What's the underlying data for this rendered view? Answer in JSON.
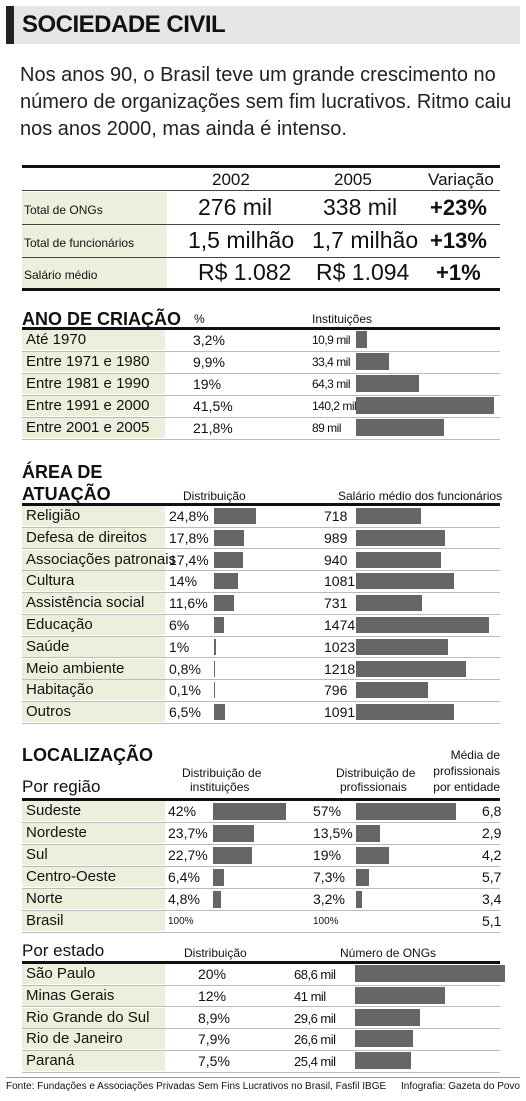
{
  "header": {
    "title": "SOCIEDADE CIVIL",
    "intro": "Nos anos 90, o Brasil teve um grande crescimento no número de organizações sem fim lucrativos. Ritmo caiu nos anos 2000, mas ainda é intenso."
  },
  "summary": {
    "years": [
      "2002",
      "2005"
    ],
    "variation_label": "Variação",
    "rows": [
      {
        "label": "Total de ONGs",
        "v2002": "276 mil",
        "v2005": "338 mil",
        "variation": "+23%"
      },
      {
        "label": "Total de funcionários",
        "v2002": "1,5 milhão",
        "v2005": "1,7 milhão",
        "variation": "+13%"
      },
      {
        "label": "Salário médio",
        "v2002": "R$ 1.082",
        "v2005": "R$ 1.094",
        "variation": "+1%"
      }
    ]
  },
  "creation": {
    "title": "ANO DE CRIAÇÃO",
    "col_pct": "%",
    "col_inst": "Instituições",
    "rows": [
      {
        "label": "Até 1970",
        "pct": "3,2%",
        "value_label": "10,9 mil"
      },
      {
        "label": "Entre 1971 e 1980",
        "pct": "9,9%",
        "value_label": "33,4 mil"
      },
      {
        "label": "Entre 1981 e 1990",
        "pct": "19%",
        "value_label": "64,3 mil"
      },
      {
        "label": "Entre 1991 e 2000",
        "pct": "41,5%",
        "value_label": "140,2 mil"
      },
      {
        "label": "Entre 2001 e 2005",
        "pct": "21,8%",
        "value_label": "89 mil"
      }
    ]
  },
  "area": {
    "title_line1": "ÁREA DE",
    "title_line2": "ATUAÇÃO",
    "col_dist": "Distribuição",
    "col_salary": "Salário médio dos funcionários",
    "rows": [
      {
        "label": "Religião",
        "dist": "24,8%",
        "salary": "718"
      },
      {
        "label": "Defesa de direitos",
        "dist": "17,8%",
        "salary": "989"
      },
      {
        "label": "Associações patronais",
        "dist": "17,4%",
        "salary": "940"
      },
      {
        "label": "Cultura",
        "dist": "14%",
        "salary": "1081"
      },
      {
        "label": "Assistência social",
        "dist": "11,6%",
        "salary": "731"
      },
      {
        "label": "Educação",
        "dist": "6%",
        "salary": "1474"
      },
      {
        "label": "Saúde",
        "dist": "1%",
        "salary": "1023"
      },
      {
        "label": "Meio ambiente",
        "dist": "0,8%",
        "salary": "1218"
      },
      {
        "label": "Habitação",
        "dist": "0,1%",
        "salary": "796"
      },
      {
        "label": "Outros",
        "dist": "6,5%",
        "salary": "1091"
      }
    ]
  },
  "location": {
    "title": "LOCALIZAÇÃO",
    "region_title": "Por região",
    "col_inst_line1": "Distribuição de",
    "col_inst_line2": "instituições",
    "col_prof_line1": "Distribuição de",
    "col_prof_line2": "profissionais",
    "col_avg_line1": "Média de",
    "col_avg_line2": "profissionais",
    "col_avg_line3": "por entidade",
    "rows": [
      {
        "label": "Sudeste",
        "inst": "42%",
        "prof": "57%",
        "avg": "6,8"
      },
      {
        "label": "Nordeste",
        "inst": "23,7%",
        "prof": "13,5%",
        "avg": "2,9"
      },
      {
        "label": "Sul",
        "inst": "22,7%",
        "prof": "19%",
        "avg": "4,2"
      },
      {
        "label": "Centro-Oeste",
        "inst": "6,4%",
        "prof": "7,3%",
        "avg": "5,7"
      },
      {
        "label": "Norte",
        "inst": "4,8%",
        "prof": "3,2%",
        "avg": "3,4"
      },
      {
        "label": "Brasil",
        "inst": "100%",
        "prof": "100%",
        "avg": "5,1"
      }
    ]
  },
  "state": {
    "title": "Por estado",
    "col_dist": "Distribuição",
    "col_count": "Número de ONGs",
    "rows": [
      {
        "label": "São Paulo",
        "dist": "20%",
        "value_label": "68,6 mil"
      },
      {
        "label": "Minas Gerais",
        "dist": "12%",
        "value_label": "41 mil"
      },
      {
        "label": "Rio Grande do Sul",
        "dist": "8,9%",
        "value_label": "29,6 mil"
      },
      {
        "label": "Rio de Janeiro",
        "dist": "7,9%",
        "value_label": "26,6 mil"
      },
      {
        "label": "Paraná",
        "dist": "7,5%",
        "value_label": "25,4 mil"
      }
    ]
  },
  "footer": {
    "source": "Fonte: Fundações e Associações Privadas Sem Fins Lucrativos no Brasil, Fasfil IBGE",
    "credit": "Infografia: Gazeta do Povo"
  },
  "colors": {
    "bar": "#666666",
    "row_background": "#eeeedd",
    "header_background": "#e6e6e6"
  },
  "chart_data": [
    {
      "type": "table",
      "name": "summary",
      "columns": [
        "2002",
        "2005",
        "Variação"
      ],
      "rows": [
        [
          "Total de ONGs",
          "276 mil",
          "338 mil",
          "+23%"
        ],
        [
          "Total de funcionários",
          "1,5 milhão",
          "1,7 milhão",
          "+13%"
        ],
        [
          "Salário médio",
          "R$ 1.082",
          "R$ 1.094",
          "+1%"
        ]
      ]
    },
    {
      "type": "bar",
      "title": "ANO DE CRIAÇÃO",
      "categories": [
        "Até 1970",
        "Entre 1971 e 1980",
        "Entre 1981 e 1990",
        "Entre 1991 e 2000",
        "Entre 2001 e 2005"
      ],
      "series": [
        {
          "name": "%",
          "values": [
            3.2,
            9.9,
            19,
            41.5,
            21.8
          ]
        },
        {
          "name": "Instituições",
          "values": [
            10.9,
            33.4,
            64.3,
            140.2,
            89
          ]
        }
      ]
    },
    {
      "type": "bar",
      "title": "ÁREA DE ATUAÇÃO",
      "categories": [
        "Religião",
        "Defesa de direitos",
        "Associações patronais",
        "Cultura",
        "Assistência social",
        "Educação",
        "Saúde",
        "Meio ambiente",
        "Habitação",
        "Outros"
      ],
      "series": [
        {
          "name": "Distribuição",
          "values": [
            24.8,
            17.8,
            17.4,
            14,
            11.6,
            6,
            1,
            0.8,
            0.1,
            6.5
          ]
        },
        {
          "name": "Salário médio dos funcionários",
          "values": [
            718,
            989,
            940,
            1081,
            731,
            1474,
            1023,
            1218,
            796,
            1091
          ]
        }
      ]
    },
    {
      "type": "bar",
      "title": "Por região",
      "categories": [
        "Sudeste",
        "Nordeste",
        "Sul",
        "Centro-Oeste",
        "Norte",
        "Brasil"
      ],
      "series": [
        {
          "name": "Distribuição de instituições",
          "values": [
            42,
            23.7,
            22.7,
            6.4,
            4.8,
            100
          ]
        },
        {
          "name": "Distribuição de profissionais",
          "values": [
            57,
            13.5,
            19,
            7.3,
            3.2,
            100
          ]
        },
        {
          "name": "Média de profissionais por entidade",
          "values": [
            6.8,
            2.9,
            4.2,
            5.7,
            3.4,
            5.1
          ]
        }
      ]
    },
    {
      "type": "bar",
      "title": "Por estado",
      "categories": [
        "São Paulo",
        "Minas Gerais",
        "Rio Grande do Sul",
        "Rio de Janeiro",
        "Paraná"
      ],
      "series": [
        {
          "name": "Distribuição",
          "values": [
            20,
            12,
            8.9,
            7.9,
            7.5
          ]
        },
        {
          "name": "Número de ONGs",
          "values": [
            68.6,
            41,
            29.6,
            26.6,
            25.4
          ]
        }
      ]
    }
  ]
}
